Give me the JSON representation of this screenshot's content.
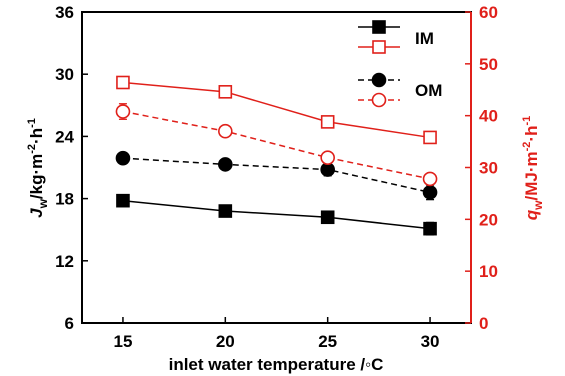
{
  "chart_data": {
    "type": "line",
    "x": [
      15,
      20,
      25,
      30
    ],
    "xlabel": "inlet water temperature /◦C",
    "xlim": [
      13,
      32
    ],
    "x_ticks": [
      "15",
      "20",
      "25",
      "30"
    ],
    "left_axis": {
      "label_main": "J",
      "label_sub": "w",
      "label_rest": "/kg·m",
      "label_exp1": "-2",
      "label_dot": "·h",
      "label_exp2": "-1",
      "ylim": [
        6,
        36
      ],
      "ticks": [
        "6",
        "12",
        "18",
        "24",
        "30",
        "36"
      ],
      "color": "#000000"
    },
    "right_axis": {
      "label_main": "q",
      "label_sub": "w",
      "label_rest": "/MJ·m",
      "label_exp1": "-2",
      "label_dot": "·h",
      "label_exp2": "-1",
      "ylim": [
        0,
        60
      ],
      "ticks": [
        "0",
        "10",
        "20",
        "30",
        "40",
        "50",
        "60"
      ],
      "color": "#e0201a"
    },
    "grid": false,
    "legend_position": "top-right",
    "series": [
      {
        "name": "IM",
        "axis": "left",
        "values": [
          17.8,
          16.8,
          16.2,
          15.1
        ],
        "errors": [
          0.3,
          0.3,
          0.3,
          0.6
        ],
        "color": "#000000",
        "marker": "square-filled",
        "dash": false
      },
      {
        "name": "IM",
        "axis": "right",
        "values": [
          46.4,
          44.6,
          38.8,
          35.8
        ],
        "errors": [
          0.5,
          0.5,
          0.4,
          0.4
        ],
        "color": "#e0201a",
        "marker": "square-open",
        "dash": false
      },
      {
        "name": "OM",
        "axis": "left",
        "values": [
          21.9,
          21.3,
          20.8,
          18.6
        ],
        "errors": [
          0.3,
          0.3,
          0.6,
          0.7
        ],
        "color": "#000000",
        "marker": "circle-filled",
        "dash": true
      },
      {
        "name": "OM",
        "axis": "right",
        "values": [
          40.8,
          37.0,
          31.9,
          27.8
        ],
        "errors": [
          1.5,
          0.5,
          0.5,
          0.5
        ],
        "color": "#e0201a",
        "marker": "circle-open",
        "dash": true
      }
    ],
    "legend": [
      {
        "label": "IM",
        "series": [
          0,
          1
        ]
      },
      {
        "label": "OM",
        "series": [
          2,
          3
        ]
      }
    ]
  }
}
